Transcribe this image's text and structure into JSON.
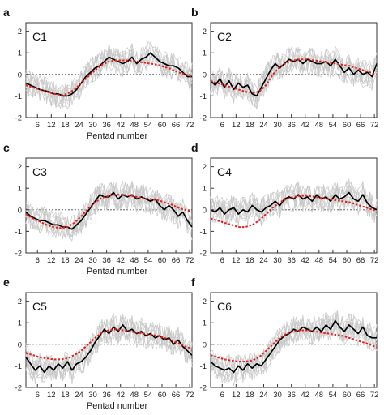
{
  "chart_data": [
    {
      "type": "line",
      "panel_label": "a",
      "title": "C1",
      "xlabel": "Pentad number",
      "ylabel": "",
      "xlim": [
        1,
        73
      ],
      "ylim": [
        -2,
        2.4
      ],
      "xticks": [
        6,
        12,
        18,
        24,
        30,
        36,
        42,
        48,
        54,
        60,
        66,
        72
      ],
      "yticks": [
        -2,
        -1,
        0,
        1,
        2
      ],
      "reference_line": 0,
      "grid": false,
      "series": [
        {
          "style": "observed-black",
          "x": [
            1,
            3,
            5,
            7,
            9,
            11,
            13,
            15,
            17,
            19,
            21,
            23,
            25,
            27,
            29,
            31,
            33,
            35,
            37,
            39,
            41,
            43,
            45,
            47,
            49,
            51,
            53,
            55,
            57,
            59,
            61,
            63,
            65,
            67,
            69,
            71,
            73
          ],
          "values": [
            -0.4,
            -0.5,
            -0.6,
            -0.7,
            -0.75,
            -0.8,
            -0.9,
            -0.9,
            -1.0,
            -1.0,
            -0.9,
            -0.7,
            -0.4,
            -0.1,
            0.1,
            0.3,
            0.4,
            0.6,
            0.8,
            0.7,
            0.6,
            0.5,
            0.6,
            0.8,
            0.5,
            0.7,
            0.8,
            1.0,
            0.8,
            0.6,
            0.5,
            0.4,
            0.4,
            0.3,
            0.1,
            -0.1,
            -0.1
          ]
        },
        {
          "style": "fit-red-dotted",
          "x": [
            1,
            4,
            7,
            10,
            13,
            16,
            19,
            22,
            25,
            28,
            31,
            34,
            37,
            40,
            43,
            46,
            49,
            52,
            55,
            58,
            61,
            64,
            67,
            70,
            73
          ],
          "values": [
            -0.5,
            -0.6,
            -0.7,
            -0.8,
            -0.9,
            -0.95,
            -0.9,
            -0.7,
            -0.4,
            -0.1,
            0.2,
            0.45,
            0.6,
            0.65,
            0.65,
            0.65,
            0.6,
            0.55,
            0.5,
            0.45,
            0.35,
            0.25,
            0.1,
            0.0,
            -0.1
          ]
        }
      ]
    },
    {
      "type": "line",
      "panel_label": "b",
      "title": "C2",
      "xlabel": "",
      "ylabel": "",
      "xlim": [
        1,
        73
      ],
      "ylim": [
        -2,
        2.4
      ],
      "xticks": [
        6,
        12,
        18,
        24,
        30,
        36,
        42,
        48,
        54,
        60,
        66,
        72
      ],
      "yticks": [
        -2,
        -1,
        0,
        1,
        2
      ],
      "reference_line": 0,
      "grid": false,
      "series": [
        {
          "style": "observed-black",
          "x": [
            1,
            3,
            5,
            7,
            9,
            11,
            13,
            15,
            17,
            19,
            21,
            23,
            25,
            27,
            29,
            31,
            33,
            35,
            37,
            39,
            41,
            43,
            45,
            47,
            49,
            51,
            53,
            55,
            57,
            59,
            61,
            63,
            65,
            67,
            69,
            71,
            73
          ],
          "values": [
            -0.3,
            -0.5,
            -0.2,
            -0.6,
            -0.3,
            -0.7,
            -0.4,
            -0.6,
            -0.5,
            -0.9,
            -1.0,
            -0.6,
            -0.2,
            0.2,
            0.5,
            0.3,
            0.5,
            0.7,
            0.6,
            0.7,
            0.5,
            0.7,
            0.6,
            0.5,
            0.5,
            0.6,
            0.4,
            0.7,
            0.4,
            0.1,
            0.3,
            0.0,
            0.2,
            0.0,
            0.1,
            -0.1,
            0.5
          ]
        },
        {
          "style": "fit-red-dotted",
          "x": [
            1,
            4,
            7,
            10,
            13,
            16,
            19,
            22,
            25,
            28,
            31,
            34,
            37,
            40,
            43,
            46,
            49,
            52,
            55,
            58,
            61,
            64,
            67,
            70,
            73
          ],
          "values": [
            -0.3,
            -0.4,
            -0.5,
            -0.6,
            -0.7,
            -0.8,
            -0.85,
            -0.8,
            -0.5,
            0.0,
            0.35,
            0.55,
            0.65,
            0.7,
            0.7,
            0.65,
            0.6,
            0.55,
            0.5,
            0.45,
            0.4,
            0.3,
            0.2,
            0.1,
            0.0
          ]
        }
      ]
    },
    {
      "type": "line",
      "panel_label": "c",
      "title": "C3",
      "xlabel": "Pentad number",
      "ylabel": "",
      "xlim": [
        1,
        73
      ],
      "ylim": [
        -2,
        2.4
      ],
      "xticks": [
        6,
        12,
        18,
        24,
        30,
        36,
        42,
        48,
        54,
        60,
        66,
        72
      ],
      "yticks": [
        -2,
        -1,
        0,
        1,
        2
      ],
      "reference_line": 0,
      "grid": false,
      "series": [
        {
          "style": "observed-black",
          "x": [
            1,
            3,
            5,
            7,
            9,
            11,
            13,
            15,
            17,
            19,
            21,
            23,
            25,
            27,
            29,
            31,
            33,
            35,
            37,
            39,
            41,
            43,
            45,
            47,
            49,
            51,
            53,
            55,
            57,
            59,
            61,
            63,
            65,
            67,
            69,
            71,
            73
          ],
          "values": [
            -0.1,
            -0.3,
            -0.4,
            -0.5,
            -0.5,
            -0.6,
            -0.7,
            -0.7,
            -0.8,
            -0.8,
            -0.9,
            -0.7,
            -0.5,
            -0.2,
            0.1,
            0.4,
            0.7,
            0.6,
            0.6,
            0.8,
            0.5,
            0.7,
            0.6,
            0.7,
            0.5,
            0.6,
            0.5,
            0.4,
            0.5,
            0.2,
            0.0,
            0.2,
            0.0,
            -0.3,
            -0.1,
            -0.5,
            -0.8
          ]
        },
        {
          "style": "fit-red-dotted",
          "x": [
            1,
            4,
            7,
            10,
            13,
            16,
            19,
            22,
            25,
            28,
            31,
            34,
            37,
            40,
            43,
            46,
            49,
            52,
            55,
            58,
            61,
            64,
            67,
            70,
            73
          ],
          "values": [
            -0.2,
            -0.4,
            -0.55,
            -0.7,
            -0.8,
            -0.85,
            -0.8,
            -0.6,
            -0.3,
            0.05,
            0.35,
            0.55,
            0.65,
            0.7,
            0.7,
            0.65,
            0.6,
            0.55,
            0.5,
            0.45,
            0.35,
            0.25,
            0.1,
            0.0,
            -0.1
          ]
        }
      ]
    },
    {
      "type": "line",
      "panel_label": "d",
      "title": "C4",
      "xlabel": "",
      "ylabel": "",
      "xlim": [
        1,
        73
      ],
      "ylim": [
        -2,
        2.4
      ],
      "xticks": [
        6,
        12,
        18,
        24,
        30,
        36,
        42,
        48,
        54,
        60,
        66,
        72
      ],
      "yticks": [
        -2,
        -1,
        0,
        1,
        2
      ],
      "reference_line": 0,
      "grid": false,
      "series": [
        {
          "style": "observed-black",
          "x": [
            1,
            3,
            5,
            7,
            9,
            11,
            13,
            15,
            17,
            19,
            21,
            23,
            25,
            27,
            29,
            31,
            33,
            35,
            37,
            39,
            41,
            43,
            45,
            47,
            49,
            51,
            53,
            55,
            57,
            59,
            61,
            63,
            65,
            67,
            69,
            71,
            73
          ],
          "values": [
            0.0,
            -0.1,
            0.1,
            -0.2,
            0.0,
            0.1,
            -0.2,
            0.0,
            -0.1,
            0.2,
            0.0,
            -0.1,
            0.1,
            0.2,
            0.4,
            0.2,
            0.5,
            0.6,
            0.5,
            0.7,
            0.5,
            0.6,
            0.4,
            0.7,
            0.5,
            0.6,
            0.4,
            0.7,
            0.5,
            0.6,
            0.8,
            0.5,
            0.4,
            0.7,
            0.3,
            0.1,
            0.0
          ]
        },
        {
          "style": "fit-red-dotted",
          "x": [
            1,
            4,
            7,
            10,
            13,
            16,
            19,
            22,
            25,
            28,
            31,
            34,
            37,
            40,
            43,
            46,
            49,
            52,
            55,
            58,
            61,
            64,
            67,
            70,
            73
          ],
          "values": [
            -0.4,
            -0.5,
            -0.6,
            -0.7,
            -0.8,
            -0.8,
            -0.7,
            -0.5,
            -0.2,
            0.1,
            0.35,
            0.5,
            0.6,
            0.65,
            0.65,
            0.6,
            0.55,
            0.5,
            0.45,
            0.4,
            0.35,
            0.25,
            0.15,
            0.05,
            -0.05
          ]
        }
      ]
    },
    {
      "type": "line",
      "panel_label": "e",
      "title": "C5",
      "xlabel": "Pentad number",
      "ylabel": "",
      "xlim": [
        1,
        73
      ],
      "ylim": [
        -2,
        2.4
      ],
      "xticks": [
        6,
        12,
        18,
        24,
        30,
        36,
        42,
        48,
        54,
        60,
        66,
        72
      ],
      "yticks": [
        -2,
        -1,
        0,
        1,
        2
      ],
      "reference_line": 0,
      "grid": false,
      "series": [
        {
          "style": "observed-black",
          "x": [
            1,
            3,
            5,
            7,
            9,
            11,
            13,
            15,
            17,
            19,
            21,
            23,
            25,
            27,
            29,
            31,
            33,
            35,
            37,
            39,
            41,
            43,
            45,
            47,
            49,
            51,
            53,
            55,
            57,
            59,
            61,
            63,
            65,
            67,
            69,
            71,
            73
          ],
          "values": [
            -0.6,
            -0.9,
            -1.2,
            -1.0,
            -1.3,
            -1.0,
            -1.2,
            -0.9,
            -1.1,
            -0.8,
            -1.2,
            -0.9,
            -0.8,
            -0.6,
            -0.3,
            0.1,
            0.4,
            0.7,
            0.5,
            0.8,
            0.6,
            0.9,
            0.6,
            0.7,
            0.5,
            0.6,
            0.4,
            0.5,
            0.3,
            0.4,
            0.2,
            0.3,
            0.0,
            0.2,
            -0.1,
            -0.3,
            -0.5
          ]
        },
        {
          "style": "fit-red-dotted",
          "x": [
            1,
            4,
            7,
            10,
            13,
            16,
            19,
            22,
            25,
            28,
            31,
            34,
            37,
            40,
            43,
            46,
            49,
            52,
            55,
            58,
            61,
            64,
            67,
            70,
            73
          ],
          "values": [
            -0.4,
            -0.5,
            -0.6,
            -0.65,
            -0.7,
            -0.7,
            -0.65,
            -0.5,
            -0.3,
            0.0,
            0.3,
            0.55,
            0.65,
            0.7,
            0.65,
            0.6,
            0.55,
            0.5,
            0.45,
            0.4,
            0.3,
            0.2,
            0.05,
            -0.1,
            -0.2
          ]
        }
      ]
    },
    {
      "type": "line",
      "panel_label": "f",
      "title": "C6",
      "xlabel": "",
      "ylabel": "",
      "xlim": [
        1,
        73
      ],
      "ylim": [
        -2,
        2.4
      ],
      "xticks": [
        6,
        12,
        18,
        24,
        30,
        36,
        42,
        48,
        54,
        60,
        66,
        72
      ],
      "yticks": [
        -2,
        -1,
        0,
        1,
        2
      ],
      "reference_line": 0,
      "grid": false,
      "series": [
        {
          "style": "observed-black",
          "x": [
            1,
            3,
            5,
            7,
            9,
            11,
            13,
            15,
            17,
            19,
            21,
            23,
            25,
            27,
            29,
            31,
            33,
            35,
            37,
            39,
            41,
            43,
            45,
            47,
            49,
            51,
            53,
            55,
            57,
            59,
            61,
            63,
            65,
            67,
            69,
            71,
            73
          ],
          "values": [
            -0.8,
            -1.0,
            -1.1,
            -1.2,
            -1.1,
            -1.3,
            -1.0,
            -1.2,
            -0.9,
            -1.1,
            -0.9,
            -1.0,
            -0.7,
            -0.4,
            -0.1,
            0.2,
            0.4,
            0.5,
            0.7,
            0.6,
            0.8,
            0.7,
            0.6,
            0.8,
            0.6,
            0.9,
            0.7,
            1.1,
            0.8,
            0.6,
            0.9,
            0.7,
            0.5,
            0.8,
            0.4,
            0.3,
            0.3
          ]
        },
        {
          "style": "fit-red-dotted",
          "x": [
            1,
            4,
            7,
            10,
            13,
            16,
            19,
            22,
            25,
            28,
            31,
            34,
            37,
            40,
            43,
            46,
            49,
            52,
            55,
            58,
            61,
            64,
            67,
            70,
            73
          ],
          "values": [
            -0.5,
            -0.6,
            -0.7,
            -0.75,
            -0.8,
            -0.8,
            -0.75,
            -0.6,
            -0.3,
            0.0,
            0.3,
            0.5,
            0.6,
            0.65,
            0.65,
            0.6,
            0.55,
            0.5,
            0.45,
            0.4,
            0.3,
            0.2,
            0.1,
            0.0,
            -0.15
          ]
        }
      ]
    }
  ]
}
